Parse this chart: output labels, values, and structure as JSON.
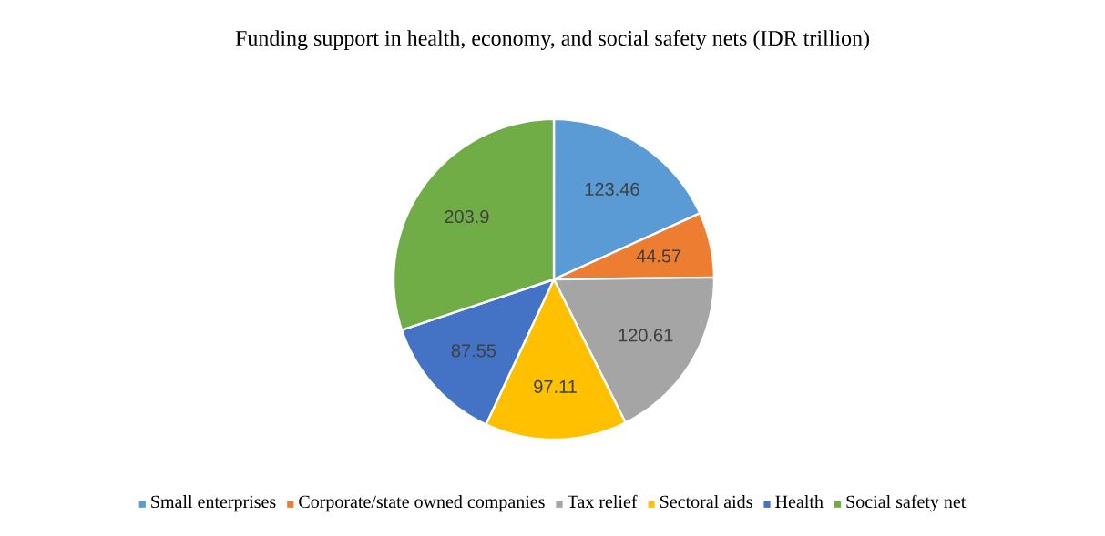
{
  "chart_data": {
    "type": "pie",
    "title": "Funding support in health, economy, and social safety nets (IDR trillion)",
    "categories": [
      "Small enterprises",
      "Corporate/state owned companies",
      "Tax relief",
      "Sectoral aids",
      "Health",
      "Social safety net"
    ],
    "values": [
      123.46,
      44.57,
      120.61,
      97.11,
      87.55,
      203.9
    ],
    "colors": [
      "#5b9bd5",
      "#ed7d31",
      "#a5a5a5",
      "#ffc000",
      "#4472c4",
      "#70ad47"
    ],
    "data_labels": true,
    "legend": "bottom"
  }
}
